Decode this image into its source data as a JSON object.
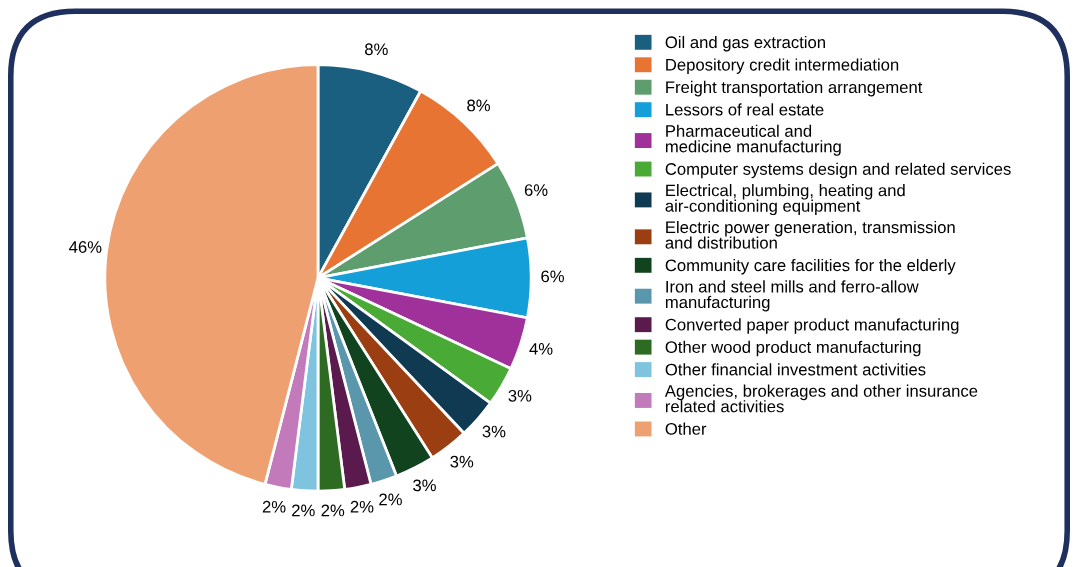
{
  "chart_data": {
    "type": "pie",
    "categories": [
      "Oil and gas extraction",
      "Depository credit intermediation",
      "Freight transportation arrangement",
      "Lessors of real estate",
      "Pharmaceutical and\nmedicine manufacturing",
      "Computer systems design and related services",
      "Electrical, plumbing, heating and\nair-conditioning equipment",
      "Electric power generation, transmission\nand distribution",
      "Community care facilities for the elderly",
      "Iron and steel mills and ferro-allow\nmanufacturing",
      "Converted paper product manufacturing",
      "Other wood product manufacturing",
      "Other financial investment activities",
      "Agencies, brokerages and other insurance\nrelated activities",
      "Other"
    ],
    "values": [
      8,
      8,
      6,
      6,
      4,
      3,
      3,
      3,
      3,
      2,
      2,
      2,
      2,
      2,
      46
    ],
    "colors": [
      "#1a5e80",
      "#e87433",
      "#5e9e6e",
      "#159fd8",
      "#a0319a",
      "#4aaa36",
      "#0f3a52",
      "#9b3f13",
      "#12431f",
      "#5a97ad",
      "#5a1a4e",
      "#2e6b22",
      "#7fc4df",
      "#c27abb",
      "#eea071"
    ],
    "value_labels": [
      "8%",
      "8%",
      "6%",
      "6%",
      "4%",
      "3%",
      "3%",
      "3%",
      "3%",
      "2%",
      "2%",
      "2%",
      "2%",
      "2%",
      "46%"
    ],
    "legend": "right"
  }
}
